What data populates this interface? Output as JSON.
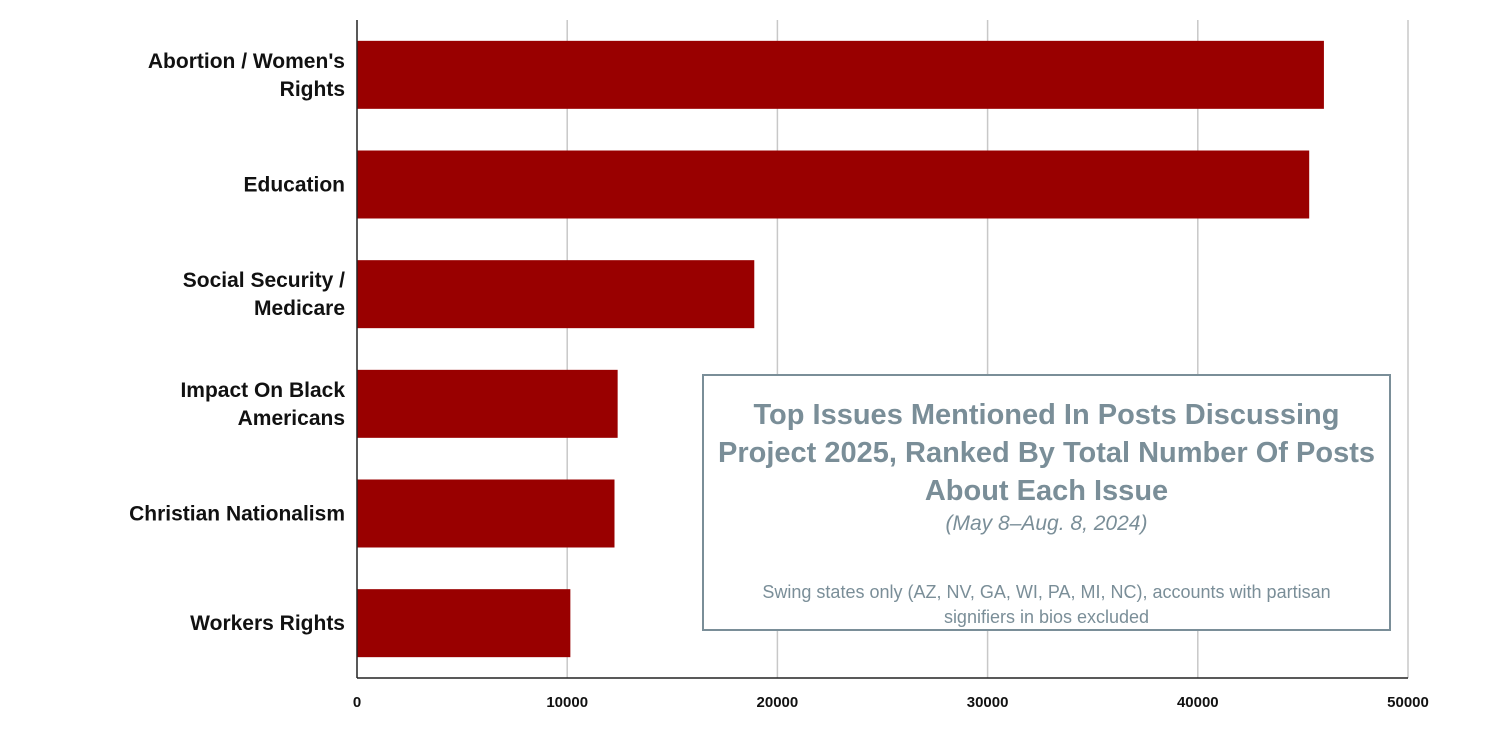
{
  "chart_data": {
    "type": "bar",
    "orientation": "horizontal",
    "title": "Top Issues Mentioned In Posts Discussing Project 2025, Ranked By Total Number Of Posts About Each Issue",
    "subtitle": "(May 8–Aug. 8, 2024)",
    "note": "Swing states only (AZ, NV, GA, WI, PA, MI, NC), accounts with partisan signifiers in bios excluded",
    "categories": [
      [
        "Abortion / Women's",
        "Rights"
      ],
      [
        "Education"
      ],
      [
        "Social Security /",
        "Medicare"
      ],
      [
        "Impact On Black",
        "Americans"
      ],
      [
        "Christian Nationalism"
      ],
      [
        "Workers Rights"
      ]
    ],
    "values": [
      46000,
      45300,
      18900,
      12400,
      12250,
      10150
    ],
    "xlim": [
      0,
      50000
    ],
    "xticks": [
      "0",
      "10000",
      "20000",
      "30000",
      "40000",
      "50000"
    ],
    "xlabel": "",
    "ylabel": "",
    "grid": true,
    "bar_color": "#990000",
    "title_color": "#7a8e98"
  }
}
